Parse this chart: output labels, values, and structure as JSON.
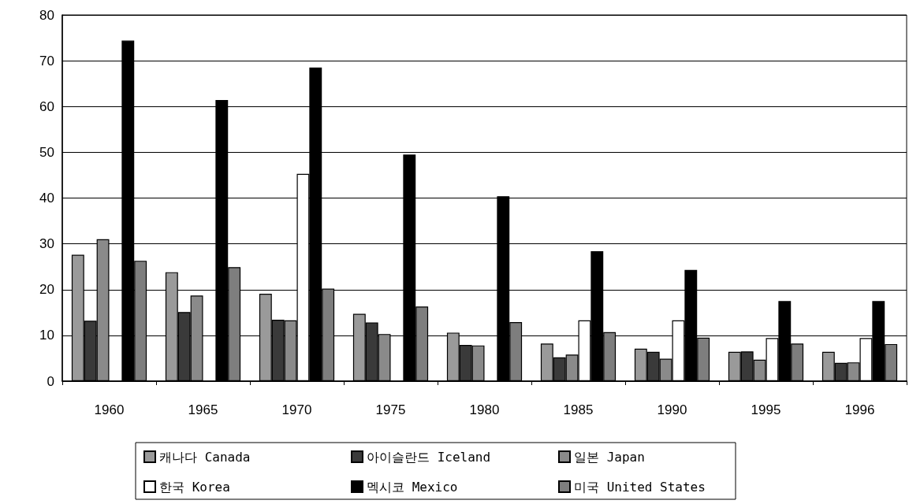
{
  "chart_data": {
    "type": "bar",
    "categories": [
      "1960",
      "1965",
      "1970",
      "1975",
      "1980",
      "1985",
      "1990",
      "1995",
      "1996"
    ],
    "series": [
      {
        "name": "캐나다 Canada",
        "color": "#9a9a9a",
        "values": [
          27.6,
          23.8,
          19.1,
          14.7,
          10.6,
          8.2,
          7.1,
          6.4,
          6.4
        ]
      },
      {
        "name": "아이슬란드 Iceland",
        "color": "#3a3a3a",
        "values": [
          13.2,
          15.1,
          13.4,
          12.8,
          7.9,
          5.2,
          6.4,
          6.5,
          4.0
        ]
      },
      {
        "name": "일본 Japan",
        "color": "#8a8a8a",
        "values": [
          31.0,
          18.7,
          13.3,
          10.3,
          7.8,
          5.8,
          4.9,
          4.7,
          4.1
        ]
      },
      {
        "name": "한국 Korea",
        "color": "#ffffff",
        "values": [
          null,
          null,
          45.3,
          null,
          null,
          13.3,
          13.3,
          9.4,
          9.4
        ]
      },
      {
        "name": "멕시코 Mexico",
        "color": "#000000",
        "values": [
          74.4,
          61.4,
          68.5,
          49.5,
          40.4,
          28.4,
          24.3,
          17.5,
          17.5
        ]
      },
      {
        "name": "미국 United States",
        "color": "#7e7e7e",
        "values": [
          26.3,
          24.9,
          20.2,
          16.3,
          12.9,
          10.7,
          9.5,
          8.2,
          8.1
        ]
      }
    ],
    "ylim": [
      0,
      80
    ],
    "yticks": [
      0,
      10,
      20,
      30,
      40,
      50,
      60,
      70,
      80
    ],
    "grid": "y",
    "legend": "bottom"
  }
}
